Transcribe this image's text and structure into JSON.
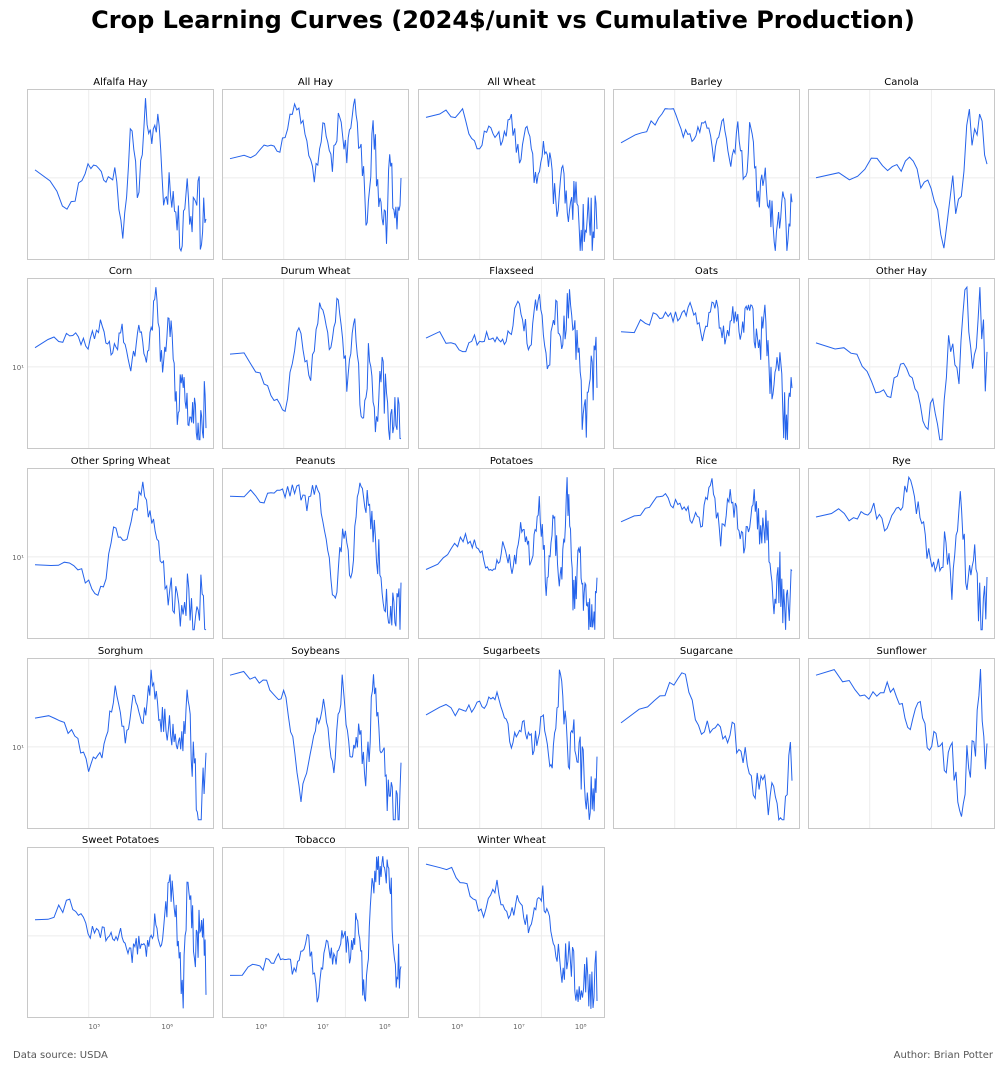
{
  "title": "Crop Learning Curves (2024$/unit vs Cumulative Production)",
  "footer": {
    "source": "Data source: USDA",
    "author": "Author: Brian Potter"
  },
  "colors": {
    "line": "#2563eb",
    "frame": "#c8c8c8",
    "grid": "#ececec",
    "tick": "#666666"
  },
  "chart_data": [
    {
      "type": "line",
      "title": "Alfalfa Hay",
      "x_scale": "log",
      "y_scale": "log",
      "seed": 11,
      "n": 85,
      "anchors": [
        0.55,
        0.25,
        0.52,
        0.58,
        0.45,
        0.52,
        0.12,
        0.8,
        0.35,
        0.95,
        0.65,
        0.9,
        0.3,
        0.48,
        0.25,
        0.1,
        0.45,
        0.2,
        0.5,
        0.15,
        0.3
      ]
    },
    {
      "type": "line",
      "title": "All Hay",
      "x_scale": "log",
      "y_scale": "log",
      "seed": 12,
      "n": 95,
      "anchors": [
        0.62,
        0.68,
        0.66,
        0.95,
        0.78,
        0.48,
        0.8,
        0.55,
        0.9,
        0.6,
        0.95,
        0.7,
        0.2,
        0.85,
        0.35,
        0.1,
        0.5,
        0.2,
        0.5
      ]
    },
    {
      "type": "line",
      "title": "All Wheat",
      "x_scale": "log",
      "y_scale": "log",
      "seed": 13,
      "n": 100,
      "anchors": [
        0.88,
        0.9,
        0.65,
        0.8,
        0.72,
        0.85,
        0.6,
        0.8,
        0.45,
        0.7,
        0.55,
        0.3,
        0.5,
        0.15,
        0.35,
        0.1,
        0.3,
        0.15,
        0.3
      ]
    },
    {
      "type": "line",
      "title": "Barley",
      "x_scale": "log",
      "y_scale": "log",
      "seed": 14,
      "n": 95,
      "anchors": [
        0.72,
        0.85,
        0.95,
        0.75,
        0.75,
        0.85,
        0.6,
        0.85,
        0.55,
        0.78,
        0.45,
        0.85,
        0.35,
        0.6,
        0.3,
        0.1,
        0.35,
        0.1,
        0.3
      ]
    },
    {
      "type": "line",
      "title": "Canola",
      "x_scale": "log",
      "y_scale": "log",
      "seed": 15,
      "n": 40,
      "anchors": [
        0.5,
        0.5,
        0.58,
        0.56,
        0.55,
        0.65,
        0.5,
        0.4,
        0.2,
        0.05,
        0.38,
        0.3,
        0.9,
        0.6,
        0.95,
        0.45
      ]
    },
    {
      "type": "line",
      "title": "Corn",
      "x_scale": "log",
      "y_scale": "log",
      "seed": 16,
      "n": 110,
      "anchors": [
        0.62,
        0.7,
        0.62,
        0.75,
        0.55,
        0.72,
        0.45,
        0.75,
        0.5,
        0.95,
        0.4,
        0.8,
        0.2,
        0.45,
        0.1,
        0.25,
        0.05,
        0.3
      ]
    },
    {
      "type": "line",
      "title": "Durum Wheat",
      "x_scale": "log",
      "y_scale": "log",
      "seed": 17,
      "n": 95,
      "anchors": [
        0.58,
        0.35,
        0.2,
        0.75,
        0.4,
        0.9,
        0.6,
        0.95,
        0.4,
        0.75,
        0.15,
        0.55,
        0.1,
        0.45,
        0.05,
        0.3,
        0.15
      ]
    },
    {
      "type": "line",
      "title": "Flaxseed",
      "x_scale": "log",
      "y_scale": "log",
      "seed": 18,
      "n": 100,
      "anchors": [
        0.68,
        0.6,
        0.68,
        0.62,
        0.68,
        0.9,
        0.6,
        0.95,
        0.45,
        0.85,
        0.65,
        0.95,
        0.6,
        0.1,
        0.35,
        0.55
      ]
    },
    {
      "type": "line",
      "title": "Oats",
      "x_scale": "log",
      "y_scale": "log",
      "seed": 19,
      "n": 105,
      "anchors": [
        0.72,
        0.82,
        0.78,
        0.88,
        0.65,
        0.9,
        0.65,
        0.8,
        0.7,
        0.92,
        0.55,
        0.8,
        0.3,
        0.55,
        0.05,
        0.45
      ]
    },
    {
      "type": "line",
      "title": "Other Hay",
      "x_scale": "log",
      "y_scale": "log",
      "seed": 20,
      "n": 55,
      "anchors": [
        0.65,
        0.55,
        0.3,
        0.3,
        0.48,
        0.42,
        0.1,
        0.2,
        0.05,
        0.7,
        0.3,
        0.95,
        0.6,
        0.8,
        0.4
      ]
    },
    {
      "type": "line",
      "title": "Other Spring Wheat",
      "x_scale": "log",
      "y_scale": "log",
      "seed": 21,
      "n": 75,
      "anchors": [
        0.45,
        0.45,
        0.3,
        0.25,
        0.7,
        0.55,
        0.78,
        0.95,
        0.7,
        0.5,
        0.3,
        0.2,
        0.1,
        0.3,
        0.05,
        0.2,
        0.1
      ]
    },
    {
      "type": "line",
      "title": "Peanuts",
      "x_scale": "log",
      "y_scale": "log",
      "seed": 22,
      "n": 95,
      "anchors": [
        0.88,
        0.85,
        0.88,
        0.92,
        0.8,
        0.95,
        0.55,
        0.15,
        0.7,
        0.35,
        0.85,
        0.88,
        0.7,
        0.5,
        0.3,
        0.15,
        0.05,
        0.1
      ]
    },
    {
      "type": "line",
      "title": "Potatoes",
      "x_scale": "log",
      "y_scale": "log",
      "seed": 23,
      "n": 130,
      "anchors": [
        0.42,
        0.6,
        0.55,
        0.35,
        0.55,
        0.4,
        0.7,
        0.45,
        0.85,
        0.3,
        0.7,
        0.25,
        0.95,
        0.2,
        0.55,
        0.15,
        0.05,
        0.15
      ]
    },
    {
      "type": "line",
      "title": "Rice",
      "x_scale": "log",
      "y_scale": "log",
      "seed": 24,
      "n": 105,
      "anchors": [
        0.72,
        0.85,
        0.82,
        0.75,
        0.68,
        0.95,
        0.6,
        0.9,
        0.72,
        0.55,
        0.9,
        0.6,
        0.7,
        0.2,
        0.35,
        0.05,
        0.35
      ]
    },
    {
      "type": "line",
      "title": "Rye",
      "x_scale": "log",
      "y_scale": "log",
      "seed": 25,
      "n": 80,
      "anchors": [
        0.75,
        0.74,
        0.8,
        0.65,
        0.78,
        0.95,
        0.75,
        0.5,
        0.4,
        0.55,
        0.25,
        0.85,
        0.3,
        0.45,
        0.1,
        0.3
      ]
    },
    {
      "type": "line",
      "title": "Sorghum",
      "x_scale": "log",
      "y_scale": "log",
      "seed": 26,
      "n": 100,
      "anchors": [
        0.68,
        0.58,
        0.35,
        0.45,
        0.85,
        0.55,
        0.8,
        0.65,
        0.95,
        0.65,
        0.6,
        0.55,
        0.5,
        0.8,
        0.3,
        0.05,
        0.3
      ]
    },
    {
      "type": "line",
      "title": "Soybeans",
      "x_scale": "log",
      "y_scale": "log",
      "seed": 27,
      "n": 100,
      "anchors": [
        0.95,
        0.85,
        0.78,
        0.15,
        0.55,
        0.75,
        0.35,
        0.9,
        0.4,
        0.55,
        0.3,
        0.9,
        0.5,
        0.2,
        0.05,
        0.25
      ]
    },
    {
      "type": "line",
      "title": "Sugarbeets",
      "x_scale": "log",
      "y_scale": "log",
      "seed": 28,
      "n": 100,
      "anchors": [
        0.7,
        0.72,
        0.73,
        0.8,
        0.5,
        0.65,
        0.45,
        0.7,
        0.35,
        0.95,
        0.4,
        0.55,
        0.3,
        0.1,
        0.3
      ]
    },
    {
      "type": "line",
      "title": "Sugarcane",
      "x_scale": "log",
      "y_scale": "log",
      "seed": 29,
      "n": 60,
      "anchors": [
        0.65,
        0.8,
        0.97,
        0.6,
        0.62,
        0.55,
        0.58,
        0.42,
        0.3,
        0.2,
        0.15,
        0.05,
        0.12,
        0.4
      ]
    },
    {
      "type": "line",
      "title": "Sunflower",
      "x_scale": "log",
      "y_scale": "log",
      "seed": 30,
      "n": 60,
      "anchors": [
        0.95,
        0.85,
        0.8,
        0.85,
        0.78,
        0.6,
        0.8,
        0.4,
        0.55,
        0.35,
        0.4,
        0.05,
        0.45,
        0.35,
        0.8,
        0.35
      ]
    },
    {
      "type": "line",
      "title": "Sweet Potatoes",
      "x_scale": "log",
      "y_scale": "log",
      "seed": 31,
      "n": 110,
      "anchors": [
        0.6,
        0.7,
        0.5,
        0.5,
        0.45,
        0.5,
        0.35,
        0.45,
        0.4,
        0.55,
        0.45,
        0.8,
        0.6,
        0.05,
        0.9,
        0.3,
        0.6,
        0.2
      ]
    },
    {
      "type": "line",
      "title": "Tobacco",
      "x_scale": "log",
      "y_scale": "log",
      "seed": 32,
      "n": 120,
      "anchors": [
        0.25,
        0.3,
        0.35,
        0.25,
        0.5,
        0.1,
        0.45,
        0.3,
        0.5,
        0.35,
        0.6,
        0.05,
        0.75,
        0.95,
        0.85,
        0.9,
        0.3,
        0.3
      ],
      "xticks": [
        "10⁶",
        "10⁷",
        "10⁸"
      ]
    },
    {
      "type": "line",
      "title": "Winter Wheat",
      "x_scale": "log",
      "y_scale": "log",
      "seed": 33,
      "n": 95,
      "anchors": [
        0.95,
        0.8,
        0.6,
        0.8,
        0.55,
        0.75,
        0.5,
        0.8,
        0.65,
        0.45,
        0.25,
        0.4,
        0.1,
        0.3,
        0.05,
        0.25
      ],
      "xticks": [
        "10⁶",
        "10⁷",
        "10⁸"
      ]
    }
  ],
  "axis_labels": {
    "ytick": "10¹",
    "xticks_col0": [
      "10⁵",
      "10⁶"
    ]
  }
}
